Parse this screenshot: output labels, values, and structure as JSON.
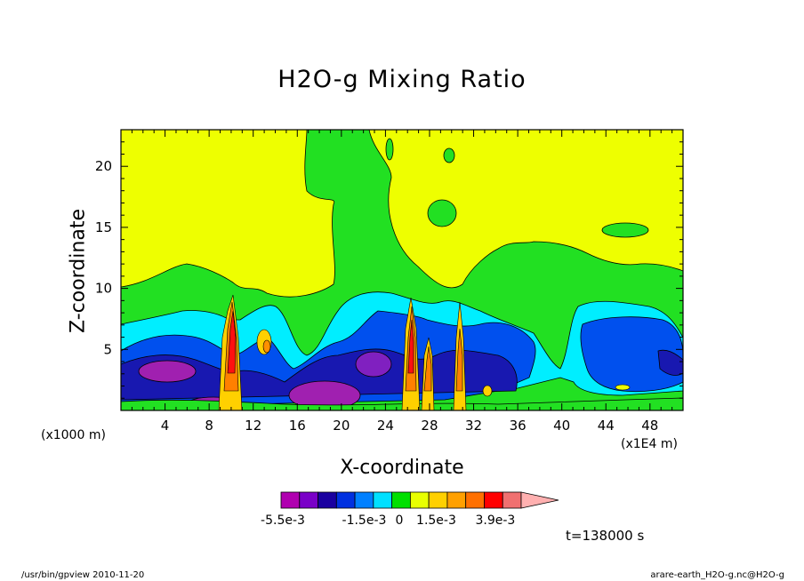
{
  "chart_data": {
    "type": "heatmap",
    "title": "H2O-g Mixing Ratio",
    "xlabel": "X-coordinate",
    "ylabel": "Z-coordinate",
    "x_unit_label": "(x1000 m)",
    "x_scale_label": "(x1E4 m)",
    "xlim": [
      0,
      51
    ],
    "ylim": [
      0,
      23
    ],
    "xticks": [
      4,
      8,
      12,
      16,
      20,
      24,
      28,
      32,
      36,
      40,
      44,
      48
    ],
    "yticks": [
      5,
      10,
      15,
      20
    ],
    "colorbar": {
      "levels": [
        -0.0055,
        -0.0015,
        0,
        0.0015,
        0.0039
      ],
      "tick_labels": [
        "-5.5e-3",
        "-1.5e-3",
        "0",
        "1.5e-3",
        "3.9e-3"
      ],
      "colors": [
        "#b000b0",
        "#7a00c8",
        "#1a00a0",
        "#0030e0",
        "#0080ff",
        "#00e0ff",
        "#00e000",
        "#e8ff00",
        "#ffd000",
        "#ffa000",
        "#ff7000",
        "#ff0000",
        "#f07070",
        "#ffb0b0"
      ]
    },
    "regions": [
      {
        "name": "upper",
        "color": "#eeff00",
        "z": [
          12,
          23
        ]
      },
      {
        "name": "mid",
        "color": "#22e022",
        "z": [
          9,
          12
        ]
      },
      {
        "name": "cyan-band",
        "color": "#00eeff",
        "z": [
          6,
          9
        ]
      },
      {
        "name": "blue-band",
        "color": "#0044ee",
        "z": [
          2,
          6
        ]
      },
      {
        "name": "purple-cells",
        "color": "#b000b0",
        "z": [
          0,
          3
        ]
      }
    ]
  },
  "annotations": {
    "time": "t=138000 s",
    "footer_left": "/usr/bin/gpview  2010-11-20",
    "footer_right": "arare-earth_H2O-g.nc@H2O-g"
  },
  "colors": {
    "yellow": "#eeff00",
    "green": "#22e022",
    "cyan": "#00eeff",
    "blue": "#0044ee",
    "dark_blue": "#1010a8",
    "purple": "#b000b0",
    "red": "#ff1010",
    "orange": "#ff9000"
  }
}
